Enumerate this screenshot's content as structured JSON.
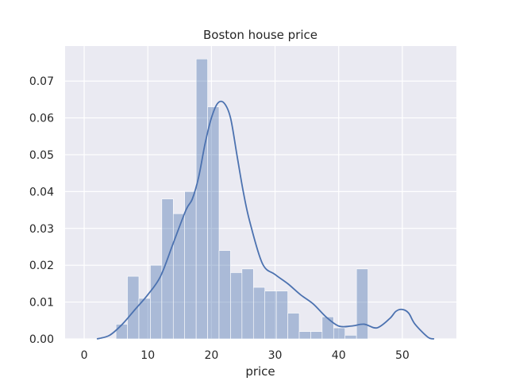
{
  "chart_data": {
    "type": "histogram",
    "title": "Boston house price",
    "xlabel": "price",
    "ylabel": "",
    "xlim": [
      -3,
      58.5
    ],
    "ylim": [
      0,
      0.0795
    ],
    "x_ticks": [
      0,
      10,
      20,
      30,
      40,
      50
    ],
    "y_ticks": [
      0.0,
      0.01,
      0.02,
      0.03,
      0.04,
      0.05,
      0.06,
      0.07
    ],
    "x_tick_labels": [
      "0",
      "10",
      "20",
      "30",
      "40",
      "50"
    ],
    "y_tick_labels": [
      "0.00",
      "0.01",
      "0.02",
      "0.03",
      "0.04",
      "0.05",
      "0.06",
      "0.07"
    ],
    "grid": true,
    "bins": {
      "start": 5,
      "width": 1.8,
      "densities": [
        0.004,
        0.017,
        0.011,
        0.02,
        0.038,
        0.034,
        0.04,
        0.076,
        0.063,
        0.024,
        0.018,
        0.019,
        0.014,
        0.013,
        0.013,
        0.007,
        0.002,
        0.002,
        0.006,
        0.003,
        0.001,
        0.019
      ]
    },
    "kde": {
      "x": [
        2,
        4,
        6,
        8,
        10,
        12,
        14,
        16,
        17,
        18,
        19,
        20,
        21,
        22,
        23,
        24,
        25,
        26,
        28,
        30,
        32,
        34,
        36,
        38,
        40,
        42,
        44,
        46,
        48,
        49,
        50,
        51,
        52,
        54,
        55
      ],
      "y": [
        0.0,
        0.001,
        0.004,
        0.008,
        0.012,
        0.017,
        0.026,
        0.035,
        0.038,
        0.044,
        0.053,
        0.06,
        0.064,
        0.064,
        0.06,
        0.05,
        0.04,
        0.032,
        0.0205,
        0.0175,
        0.015,
        0.012,
        0.0095,
        0.006,
        0.0035,
        0.0035,
        0.004,
        0.003,
        0.0055,
        0.0075,
        0.008,
        0.007,
        0.004,
        0.0005,
        0.0
      ]
    },
    "colors": {
      "background": "#eaeaf2",
      "grid": "#ffffff",
      "bar": "#4c72b0",
      "bar_opacity": 0.4,
      "line": "#4c72b0"
    }
  }
}
